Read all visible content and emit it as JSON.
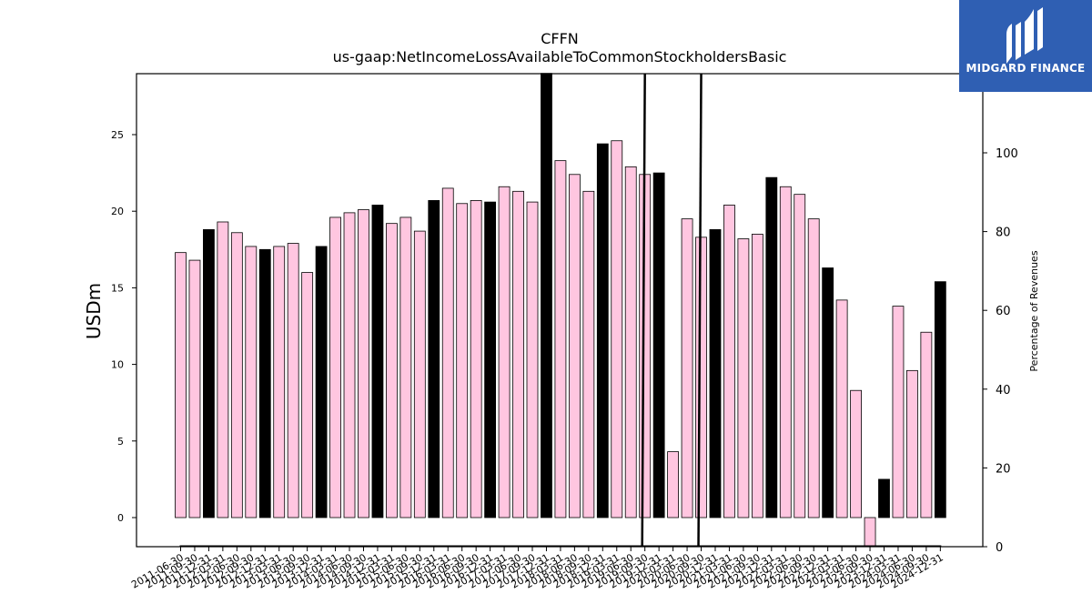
{
  "title_line1": "CFFN",
  "title_line2": "us-gaap:NetIncomeLossAvailableToCommonStockholdersBasic",
  "logo_text": "MIDGARD FINANCE",
  "colors": {
    "quarter_bar": "#ffc6e0",
    "annual_bar": "#000000",
    "axis": "#000000",
    "logo_bg": "#2f5fb3"
  },
  "chart_data": {
    "type": "bar",
    "ylabel": "USDm",
    "y2label": "Percentage of Revenues",
    "ylim": [
      -1.9,
      29
    ],
    "y2lim": [
      0,
      120
    ],
    "yticks": [
      0,
      5,
      10,
      15,
      20,
      25
    ],
    "y2ticks": [
      0,
      20,
      40,
      60,
      80,
      100
    ],
    "categories": [
      "2011-06-30",
      "2011-09-30",
      "2011-12-31",
      "2012-03-31",
      "2012-06-30",
      "2012-09-30",
      "2012-12-31",
      "2013-03-31",
      "2013-06-30",
      "2013-09-30",
      "2013-12-31",
      "2014-03-31",
      "2014-06-30",
      "2014-09-30",
      "2014-12-31",
      "2015-03-31",
      "2015-06-30",
      "2015-09-30",
      "2015-12-31",
      "2016-03-31",
      "2016-06-30",
      "2016-09-30",
      "2016-12-31",
      "2017-03-31",
      "2017-06-30",
      "2017-09-30",
      "2017-12-31",
      "2018-03-31",
      "2018-06-30",
      "2018-09-30",
      "2018-12-31",
      "2019-03-31",
      "2019-06-30",
      "2019-09-30",
      "2019-12-31",
      "2020-03-31",
      "2020-06-30",
      "2020-09-30",
      "2020-12-31",
      "2021-03-31",
      "2021-06-30",
      "2021-09-30",
      "2021-12-31",
      "2022-03-31",
      "2022-06-30",
      "2022-09-30",
      "2022-12-31",
      "2023-03-31",
      "2023-06-30",
      "2023-09-30",
      "2023-12-31",
      "2024-03-31",
      "2024-06-30",
      "2024-09-30",
      "2024-12-31"
    ],
    "tick_labels": [
      "2011-06-30",
      "2011-09-30",
      "2011-12-31",
      "2012-03-31",
      "2012-06-30",
      "2012-09-30",
      "2012-12-31",
      "2013-03-31",
      "2013-06-30",
      "2013-09-30",
      "2013-12-31",
      "2014-03-31",
      "2014-06-30",
      "2014-09-30",
      "2014-12-31",
      "2015-03-31",
      "2015-06-30",
      "2015-09-30",
      "2015-12-31",
      "2016-03-31",
      "2016-06-30",
      "2016-09-30",
      "2016-12-31",
      "2017-03-31",
      "2017-06-30",
      "2017-09-30",
      "2017-12-31",
      "2018-03-31",
      "2018-06-30",
      "2018-09-30",
      "2018-12-31",
      "2019-03-31",
      "2019-06-30",
      "2019-09-30",
      "2019-12-31",
      "2020-03-31",
      "2020-06-30",
      "2020-09-30",
      "2020-12-31",
      "2021-03-31",
      "2021-06-30",
      "2021-09-30",
      "2021-12-31",
      "2022-03-31",
      "2022-06-30",
      "2022-09-30",
      "2022-12-31",
      "2023-03-31",
      "2023-06-30",
      "2023-09-30",
      "2023-12-31",
      "2024-03-31",
      "2024-06-30",
      "2024-09-30",
      "2024-12-31"
    ],
    "values": [
      17.3,
      16.8,
      18.8,
      19.3,
      18.6,
      17.7,
      17.5,
      17.7,
      17.9,
      16.0,
      17.7,
      19.6,
      19.9,
      20.1,
      20.4,
      19.2,
      19.6,
      18.7,
      20.7,
      21.5,
      20.5,
      20.7,
      20.6,
      21.6,
      21.3,
      20.6,
      29.0,
      23.3,
      22.4,
      21.3,
      24.4,
      24.6,
      22.9,
      22.4,
      22.5,
      4.3,
      19.5,
      18.3,
      18.8,
      20.4,
      18.2,
      18.5,
      22.2,
      21.6,
      21.1,
      19.5,
      16.3,
      14.2,
      8.3,
      -1.9,
      2.5,
      13.8,
      9.6,
      12.1,
      15.4
    ],
    "annual": [
      false,
      false,
      true,
      false,
      false,
      false,
      true,
      false,
      false,
      false,
      true,
      false,
      false,
      false,
      true,
      false,
      false,
      false,
      true,
      false,
      false,
      false,
      true,
      false,
      false,
      false,
      true,
      false,
      false,
      false,
      true,
      false,
      false,
      false,
      true,
      false,
      false,
      false,
      true,
      false,
      false,
      false,
      true,
      false,
      false,
      false,
      true,
      false,
      false,
      false,
      true,
      false,
      false,
      false,
      true
    ],
    "line_series": [
      {
        "x": "2019-09-30",
        "y_pct": 0
      },
      {
        "x": "2019-09-30",
        "y_pct": 120
      }
    ],
    "line_series_2": [
      {
        "x": "2020-09-30",
        "y_pct": 0
      },
      {
        "x": "2020-09-30",
        "y_pct": 120
      }
    ],
    "grid": false,
    "legend": "none"
  }
}
